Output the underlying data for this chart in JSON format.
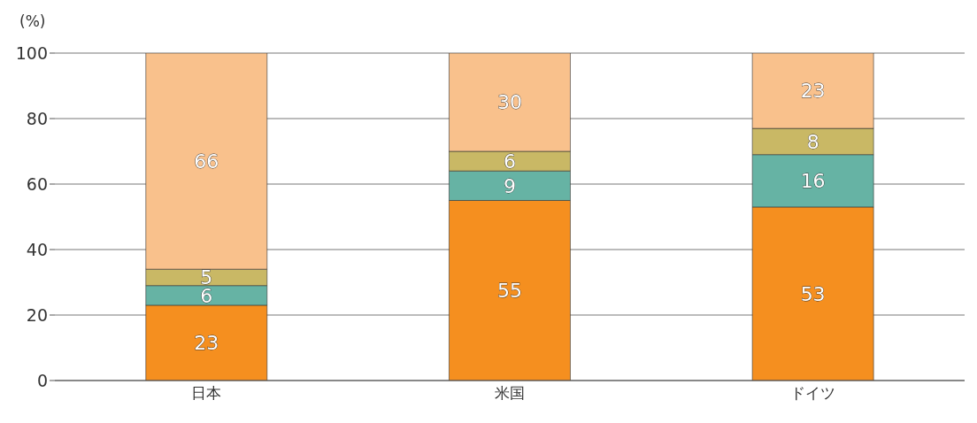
{
  "chart_data": {
    "type": "bar",
    "stacked": true,
    "ylabel": "(%)",
    "categories": [
      "日本",
      "米国",
      "ドイツ"
    ],
    "series": [
      {
        "color": "#f58f1f",
        "values": [
          23,
          55,
          53
        ]
      },
      {
        "color": "#66b3a4",
        "values": [
          6,
          9,
          16
        ]
      },
      {
        "color": "#c9b865",
        "values": [
          5,
          6,
          8
        ]
      },
      {
        "color": "#f9c18c",
        "values": [
          66,
          30,
          23
        ]
      }
    ],
    "ylim": [
      0,
      100
    ],
    "yticks": [
      0,
      20,
      40,
      60,
      80,
      100
    ],
    "grid": "y",
    "data_labels": true
  }
}
